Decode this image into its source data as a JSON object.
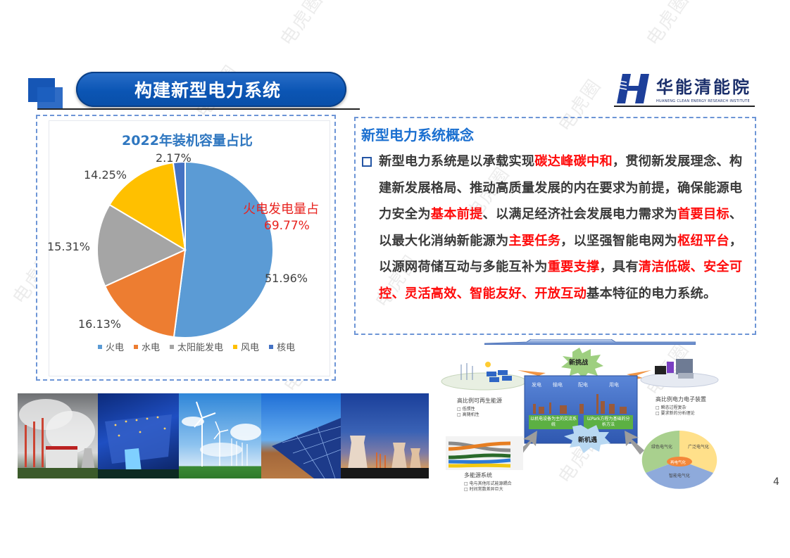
{
  "header": {
    "title": "构建新型电力系统",
    "logo_cn": "华能清能院",
    "logo_en": "HUANENG CLEAN ENERGY RESEARCH INSTITUTE",
    "accent_color": "#0b55b4"
  },
  "watermark": "电虎圈",
  "chart_panel": {
    "callout_line1": "火电发电量占",
    "callout_line2": "69.77%"
  },
  "chart_data": {
    "type": "pie",
    "title": "2022年装机容量占比",
    "categories": [
      "火电",
      "水电",
      "太阳能发电",
      "风电",
      "核电"
    ],
    "values": [
      51.96,
      16.13,
      15.31,
      14.25,
      2.17
    ],
    "labels": [
      "51.96%",
      "16.13%",
      "15.31%",
      "14.25%",
      "2.17%"
    ],
    "colors": [
      "#5b9bd5",
      "#ed7d31",
      "#a5a5a5",
      "#ffc000",
      "#4472c4"
    ],
    "legend_position": "bottom",
    "annotations": [
      "火电发电量占 69.77%"
    ]
  },
  "legend": [
    {
      "label": "火电",
      "color": "#5b9bd5"
    },
    {
      "label": "水电",
      "color": "#ed7d31"
    },
    {
      "label": "太阳能发电",
      "color": "#a5a5a5"
    },
    {
      "label": "风电",
      "color": "#ffc000"
    },
    {
      "label": "核电",
      "color": "#4472c4"
    }
  ],
  "concept": {
    "title": "新型电力系统概念",
    "segments": [
      {
        "t": "新型电力系统是以承载实现",
        "red": false
      },
      {
        "t": "碳达峰碳中和",
        "red": true
      },
      {
        "t": "，贯彻新发展理念、构建新发展格局、推动高质量发展的内在要求为前提，确保能源电力安全为",
        "red": false
      },
      {
        "t": "基本前提",
        "red": true
      },
      {
        "t": "、以满足经济社会发展电力需求为",
        "red": false
      },
      {
        "t": "首要目标",
        "red": true
      },
      {
        "t": "、以最大化消纳新能源为",
        "red": false
      },
      {
        "t": "主要任务",
        "red": true
      },
      {
        "t": "，以坚强智能电网为",
        "red": false
      },
      {
        "t": "枢纽平台",
        "red": true
      },
      {
        "t": "，以源网荷储互动与多能互补为",
        "red": false
      },
      {
        "t": "重要支撑",
        "red": true
      },
      {
        "t": "，具有",
        "red": false
      },
      {
        "t": "清洁低碳、安全可控、灵活高效、智能友好、开放互动",
        "red": true
      },
      {
        "t": "基本特征的电力系统。",
        "red": false
      }
    ]
  },
  "photos": [
    {
      "name": "thermal-power-plant-photo"
    },
    {
      "name": "hydropower-dam-photo"
    },
    {
      "name": "wind-turbines-photo"
    },
    {
      "name": "solar-panels-photo"
    },
    {
      "name": "nuclear-cooling-towers-photo"
    }
  ],
  "diagram": {
    "challenge": "新挑战",
    "opportunity": "新机遇",
    "stages": [
      "发电",
      "输电",
      "配电",
      "用电"
    ],
    "box_left": "以机电设备为主的交流系统",
    "box_right": "以Park方程为基础的分析方法",
    "renewable": {
      "title": "高比例可再生能源",
      "items": [
        "低惯性",
        "高随机性"
      ]
    },
    "power_electronics": {
      "title": "高比例电力电子装置",
      "items": [
        "瞬态过程复杂",
        "要求新的分析理论"
      ]
    },
    "multi_energy": {
      "title": "多能源系统",
      "items": [
        "电与其他形式能源耦合",
        "时间常数差异巨大"
      ]
    },
    "electrification": {
      "center": "再电气化",
      "sectors": [
        "绿色电气化",
        "广泛电气化",
        "智能电气化"
      ]
    }
  },
  "page_number": "4"
}
